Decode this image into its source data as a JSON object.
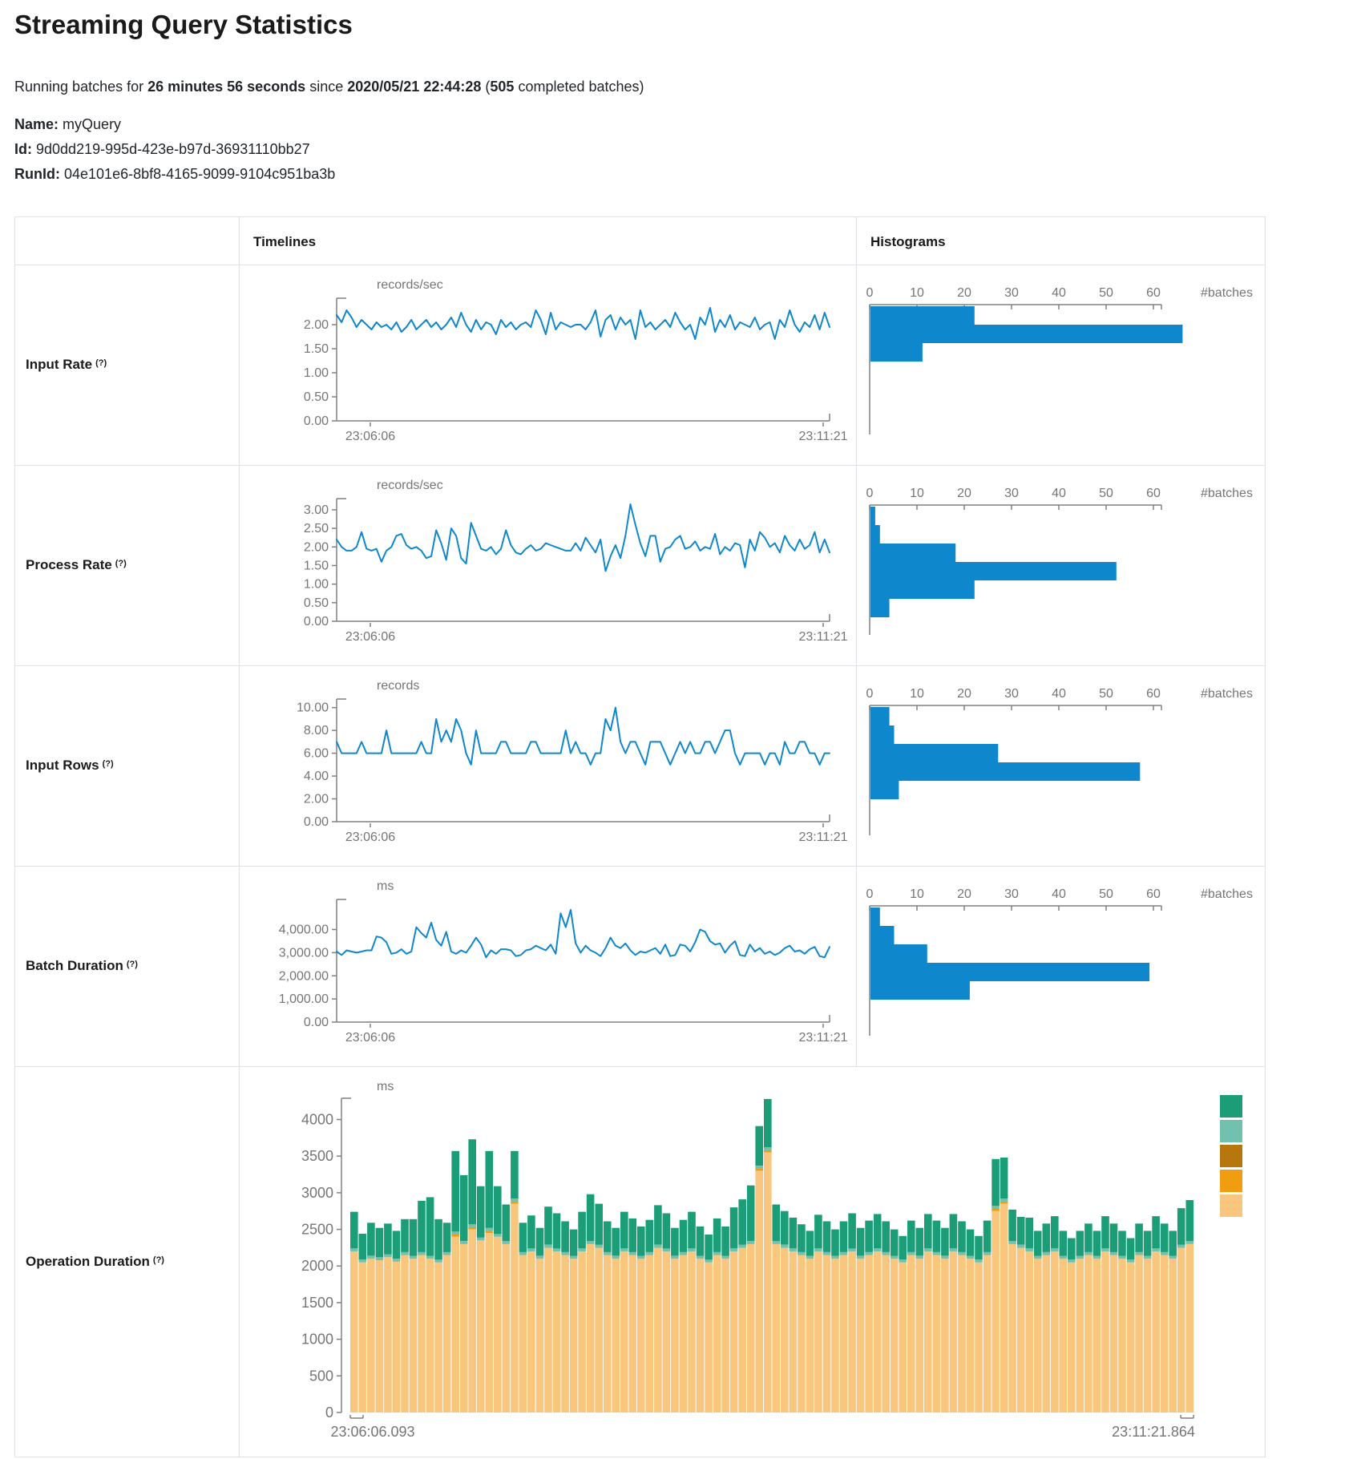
{
  "page": {
    "title": "Streaming Query Statistics",
    "running_prefix": "Running batches for ",
    "duration": "26 minutes 56 seconds",
    "since_label": " since ",
    "since": "2020/05/21 22:44:28",
    "paren_open": " (",
    "batches_count": "505",
    "batches_suffix": " completed batches)"
  },
  "meta": {
    "name_label": "Name:",
    "name": "myQuery",
    "id_label": "Id:",
    "id": "9d0dd219-995d-423e-b97d-36931110bb27",
    "runid_label": "RunId:",
    "runid": "04e101e6-8bf8-4165-9099-9104c951ba3b"
  },
  "table": {
    "col_timelines": "Timelines",
    "col_histograms": "Histograms"
  },
  "rows": [
    {
      "label": "Input Rate",
      "help": "(?)"
    },
    {
      "label": "Process Rate",
      "help": "(?)"
    },
    {
      "label": "Input Rows",
      "help": "(?)"
    },
    {
      "label": "Batch Duration",
      "help": "(?)"
    },
    {
      "label": "Operation Duration",
      "help": "(?)"
    }
  ],
  "colors": {
    "blue": "#0f87cc",
    "axis": "#808080",
    "tick_text": "#757575",
    "border": "#dee2e6",
    "teal": "#1b9e77",
    "light_teal": "#72c0ae",
    "dark_gold": "#b8770d",
    "orange": "#f29d11",
    "tan": "#f8c67d"
  },
  "chart_data": [
    {
      "name": "Input Rate",
      "type": "line",
      "unit": "records/sec",
      "x_start": "23:06:06",
      "x_end": "23:11:21",
      "ylim": [
        0,
        2.55
      ],
      "yticks": [
        {
          "v": 0,
          "label": "0.00"
        },
        {
          "v": 0.5,
          "label": "0.50"
        },
        {
          "v": 1,
          "label": "1.00"
        },
        {
          "v": 1.5,
          "label": "1.50"
        },
        {
          "v": 2,
          "label": "2.00"
        }
      ],
      "values": [
        2.2,
        2.05,
        2.3,
        2.15,
        1.95,
        2.1,
        2.0,
        1.9,
        2.05,
        1.95,
        2.0,
        1.9,
        2.05,
        1.85,
        1.95,
        2.1,
        1.9,
        2.0,
        2.1,
        1.95,
        2.05,
        1.9,
        2.0,
        2.15,
        1.95,
        2.25,
        2.0,
        1.85,
        2.1,
        1.9,
        2.05,
        2.0,
        1.8,
        2.1,
        1.95,
        2.05,
        1.9,
        2.0,
        2.05,
        1.95,
        2.3,
        2.1,
        1.8,
        2.25,
        1.9,
        2.05,
        2.0,
        1.95,
        2.0,
        2.0,
        1.9,
        2.05,
        2.3,
        1.75,
        2.1,
        2.2,
        1.9,
        2.15,
        2.0,
        2.1,
        1.7,
        2.3,
        1.95,
        2.05,
        1.9,
        2.0,
        2.1,
        1.95,
        2.25,
        2.05,
        1.9,
        2.0,
        1.7,
        2.15,
        2.0,
        2.35,
        1.85,
        2.1,
        1.95,
        2.2,
        1.9,
        2.05,
        2.0,
        1.95,
        2.15,
        1.9,
        2.0,
        2.05,
        1.7,
        2.1,
        1.95,
        2.3,
        2.0,
        1.85,
        2.05,
        1.95,
        2.2,
        1.9,
        2.25,
        1.95
      ],
      "histogram": {
        "type": "bar",
        "orientation": "horizontal",
        "xlabel": "#batches",
        "ticks": [
          0,
          10,
          20,
          30,
          40,
          50,
          60
        ],
        "values": [
          22,
          66,
          11
        ]
      }
    },
    {
      "name": "Process Rate",
      "type": "line",
      "unit": "records/sec",
      "x_start": "23:06:06",
      "x_end": "23:11:21",
      "ylim": [
        0,
        3.3
      ],
      "yticks": [
        {
          "v": 0,
          "label": "0.00"
        },
        {
          "v": 0.5,
          "label": "0.50"
        },
        {
          "v": 1,
          "label": "1.00"
        },
        {
          "v": 1.5,
          "label": "1.50"
        },
        {
          "v": 2,
          "label": "2.00"
        },
        {
          "v": 2.5,
          "label": "2.50"
        },
        {
          "v": 3,
          "label": "3.00"
        }
      ],
      "values": [
        2.2,
        2.0,
        1.9,
        1.9,
        2.0,
        2.4,
        1.95,
        1.9,
        1.95,
        1.6,
        1.9,
        2.0,
        2.3,
        2.35,
        2.05,
        1.95,
        2.0,
        1.9,
        1.7,
        1.75,
        2.45,
        2.1,
        1.65,
        2.5,
        2.3,
        1.7,
        1.55,
        2.65,
        2.3,
        1.95,
        1.9,
        2.0,
        1.8,
        1.95,
        2.45,
        2.05,
        1.85,
        1.8,
        1.95,
        2.05,
        1.9,
        1.95,
        2.1,
        2.05,
        2.0,
        1.95,
        1.9,
        1.9,
        2.1,
        1.9,
        2.25,
        2.05,
        1.85,
        2.2,
        1.35,
        1.75,
        2.05,
        1.7,
        2.3,
        3.15,
        2.6,
        2.1,
        1.75,
        2.3,
        2.3,
        1.6,
        1.95,
        2.0,
        2.2,
        2.3,
        1.95,
        2.0,
        2.15,
        1.9,
        2.0,
        1.95,
        2.35,
        1.8,
        2.0,
        1.9,
        2.1,
        2.05,
        1.45,
        2.2,
        1.9,
        2.4,
        2.25,
        2.0,
        2.1,
        1.85,
        2.3,
        2.05,
        1.9,
        2.2,
        1.95,
        2.05,
        2.4,
        1.85,
        2.2,
        1.85
      ],
      "histogram": {
        "type": "bar",
        "orientation": "horizontal",
        "xlabel": "#batches",
        "ticks": [
          0,
          10,
          20,
          30,
          40,
          50,
          60
        ],
        "values": [
          1,
          2,
          18,
          52,
          22,
          4
        ]
      }
    },
    {
      "name": "Input Rows",
      "type": "line",
      "unit": "records",
      "x_start": "23:06:06",
      "x_end": "23:11:21",
      "ylim": [
        0,
        10.75
      ],
      "yticks": [
        {
          "v": 0,
          "label": "0.00"
        },
        {
          "v": 2,
          "label": "2.00"
        },
        {
          "v": 4,
          "label": "4.00"
        },
        {
          "v": 6,
          "label": "6.00"
        },
        {
          "v": 8,
          "label": "8.00"
        },
        {
          "v": 10,
          "label": "10.00"
        }
      ],
      "values": [
        7,
        6,
        6,
        6,
        6,
        7,
        6,
        6,
        6,
        6,
        8,
        6,
        6,
        6,
        6,
        6,
        6,
        7,
        6,
        6,
        9,
        7,
        8,
        7,
        9,
        8,
        6,
        5,
        8,
        6,
        6,
        6,
        6,
        7,
        7,
        6,
        6,
        6,
        6,
        7,
        7,
        6,
        6,
        6,
        6,
        6,
        8,
        6,
        7,
        6,
        6,
        5,
        6,
        6,
        9,
        8,
        10,
        7,
        6,
        7,
        7,
        6,
        5,
        7,
        7,
        7,
        6,
        5,
        6,
        7,
        6,
        7,
        6,
        6,
        7,
        7,
        6,
        7,
        8,
        8,
        6,
        5,
        6,
        6,
        6,
        6,
        5,
        6,
        6,
        5,
        7,
        6,
        6,
        7,
        7,
        6,
        6,
        5,
        6,
        6
      ],
      "histogram": {
        "type": "bar",
        "orientation": "horizontal",
        "xlabel": "#batches",
        "ticks": [
          0,
          10,
          20,
          30,
          40,
          50,
          60
        ],
        "values": [
          4,
          5,
          27,
          57,
          6
        ]
      }
    },
    {
      "name": "Batch Duration",
      "type": "line",
      "unit": "ms",
      "x_start": "23:06:06",
      "x_end": "23:11:21",
      "ylim": [
        0,
        5300
      ],
      "yticks": [
        {
          "v": 0,
          "label": "0.00"
        },
        {
          "v": 1000,
          "label": "1,000.00"
        },
        {
          "v": 2000,
          "label": "2,000.00"
        },
        {
          "v": 3000,
          "label": "3,000.00"
        },
        {
          "v": 4000,
          "label": "4,000.00"
        }
      ],
      "values": [
        3050,
        2900,
        3100,
        3050,
        3000,
        3050,
        3100,
        3100,
        3700,
        3650,
        3450,
        2950,
        3000,
        3150,
        2950,
        3050,
        4100,
        3850,
        3650,
        4300,
        3550,
        3300,
        3900,
        3050,
        2950,
        3100,
        3000,
        3300,
        3650,
        3350,
        2800,
        3100,
        2950,
        3150,
        3150,
        3100,
        2850,
        2900,
        3100,
        3150,
        3300,
        3200,
        3100,
        3350,
        2950,
        4700,
        4100,
        4850,
        3400,
        3000,
        3300,
        3100,
        3000,
        2850,
        3200,
        3650,
        3300,
        3200,
        3400,
        3100,
        2900,
        3050,
        3000,
        3100,
        3200,
        2950,
        3350,
        2850,
        2900,
        3350,
        3300,
        3050,
        3450,
        4000,
        3900,
        3500,
        3350,
        3400,
        3000,
        3300,
        3500,
        2900,
        2850,
        3350,
        3050,
        3200,
        2950,
        3050,
        2900,
        3000,
        3200,
        3300,
        3050,
        3100,
        2950,
        3150,
        3250,
        2850,
        2800,
        3250
      ],
      "histogram": {
        "type": "bar",
        "orientation": "horizontal",
        "xlabel": "#batches",
        "ticks": [
          0,
          10,
          20,
          30,
          40,
          50,
          60
        ],
        "values": [
          2,
          5,
          12,
          59,
          21
        ]
      }
    },
    {
      "name": "Operation Duration",
      "type": "stacked_bar",
      "unit": "ms",
      "x_start": "23:06:06.093",
      "x_end": "23:11:21.864",
      "ylim": [
        0,
        4290
      ],
      "yticks": [
        {
          "v": 0,
          "label": "0"
        },
        {
          "v": 500,
          "label": "500"
        },
        {
          "v": 1000,
          "label": "1000"
        },
        {
          "v": 1500,
          "label": "1500"
        },
        {
          "v": 2000,
          "label": "2000"
        },
        {
          "v": 2500,
          "label": "2500"
        },
        {
          "v": 3000,
          "label": "3000"
        },
        {
          "v": 3500,
          "label": "3500"
        },
        {
          "v": 4000,
          "label": "4000"
        }
      ],
      "legend": [
        "teal",
        "light_teal",
        "dark_gold",
        "orange",
        "tan"
      ],
      "series": [
        {
          "name": "bottom-tan",
          "color": "tan",
          "values": [
            2200,
            2050,
            2100,
            2080,
            2120,
            2060,
            2150,
            2100,
            2150,
            2100,
            2050,
            2150,
            2400,
            2300,
            2500,
            2350,
            2450,
            2400,
            2300,
            2850,
            2150,
            2200,
            2100,
            2250,
            2200,
            2150,
            2100,
            2200,
            2300,
            2250,
            2150,
            2100,
            2200,
            2150,
            2100,
            2150,
            2250,
            2200,
            2100,
            2150,
            2200,
            2100,
            2050,
            2150,
            2100,
            2200,
            2250,
            2300,
            3300,
            3550,
            2300,
            2250,
            2200,
            2150,
            2100,
            2200,
            2150,
            2100,
            2150,
            2200,
            2100,
            2150,
            2200,
            2150,
            2100,
            2050,
            2150,
            2100,
            2200,
            2150,
            2100,
            2200,
            2150,
            2100,
            2050,
            2150,
            2750,
            2850,
            2300,
            2250,
            2200,
            2100,
            2150,
            2200,
            2100,
            2050,
            2100,
            2150,
            2100,
            2200,
            2150,
            2100,
            2050,
            2150,
            2100,
            2200,
            2150,
            2100,
            2250,
            2300
          ]
        },
        {
          "name": "orange-sliver",
          "color": "orange",
          "values": [
            0,
            0,
            0,
            0,
            0,
            0,
            0,
            0,
            0,
            0,
            0,
            0,
            30,
            0,
            30,
            0,
            30,
            0,
            0,
            30,
            0,
            0,
            0,
            0,
            0,
            0,
            0,
            0,
            0,
            0,
            0,
            0,
            0,
            0,
            0,
            0,
            0,
            0,
            0,
            0,
            0,
            0,
            0,
            0,
            0,
            0,
            0,
            0,
            30,
            30,
            0,
            0,
            0,
            0,
            0,
            0,
            0,
            0,
            0,
            0,
            0,
            0,
            0,
            0,
            0,
            0,
            0,
            0,
            0,
            0,
            0,
            0,
            0,
            0,
            0,
            0,
            30,
            30,
            0,
            0,
            0,
            0,
            0,
            0,
            0,
            0,
            0,
            0,
            0,
            0,
            0,
            0,
            0,
            0,
            0,
            0,
            0,
            0,
            0,
            0
          ]
        },
        {
          "name": "light-teal-sliver",
          "color": "light_teal",
          "constant": 40
        },
        {
          "name": "top-teal",
          "color": "teal",
          "values": [
            500,
            350,
            450,
            400,
            420,
            380,
            450,
            500,
            700,
            800,
            550,
            400,
            1100,
            900,
            1160,
            700,
            1050,
            650,
            500,
            650,
            400,
            450,
            380,
            520,
            480,
            420,
            360,
            500,
            640,
            560,
            420,
            380,
            500,
            460,
            400,
            440,
            540,
            480,
            380,
            440,
            500,
            400,
            340,
            460,
            400,
            560,
            620,
            760,
            540,
            660,
            500,
            460,
            420,
            380,
            340,
            460,
            420,
            360,
            420,
            480,
            380,
            430,
            470,
            420,
            360,
            320,
            430,
            380,
            470,
            430,
            380,
            470,
            420,
            360,
            320,
            430,
            640,
            560,
            430,
            380,
            420,
            340,
            390,
            440,
            340,
            290,
            340,
            390,
            340,
            440,
            390,
            340,
            290,
            390,
            340,
            440,
            390,
            340,
            500,
            560
          ]
        }
      ]
    }
  ]
}
